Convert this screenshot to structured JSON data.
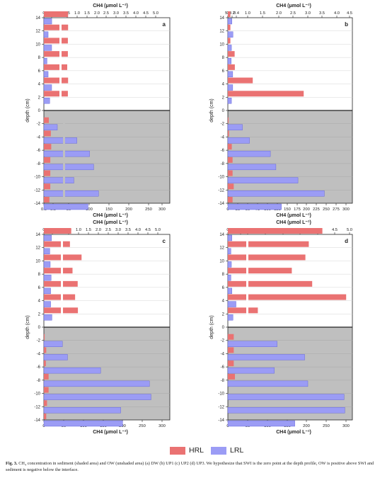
{
  "chart_data": [
    {
      "type": "bar",
      "panel_label": "a",
      "ylabel": "depth (cm)",
      "top_xlabel": "CH4 (μmol L⁻¹)",
      "bottom_xlabel": "CH4 (μmol L⁻¹)",
      "top_ticks": [
        "0",
        "0.04",
        "0.5",
        "1.0",
        "1.5",
        "2.0",
        "2.5",
        "3.0",
        "3.5",
        "4.0",
        "4.5",
        "5.0"
      ],
      "bottom_ticks": [
        "0.0",
        "0.5",
        "50",
        "100",
        "150",
        "200",
        "250",
        "300"
      ],
      "y_ticks": [
        "14",
        "12",
        "10",
        "8",
        "6",
        "4",
        "2",
        "0",
        "-2",
        "-4",
        "-6",
        "-8",
        "-10",
        "-12",
        "-14"
      ],
      "depths": [
        14,
        12,
        10,
        8,
        6,
        4,
        2,
        -2,
        -4,
        -6,
        -8,
        -10,
        -12,
        -14
      ],
      "series": [
        {
          "name": "HRL",
          "values": [
            0.54,
            0.54,
            0.53,
            0.53,
            0.5,
            0.54,
            0.53,
            0.27,
            0.38,
            0.4,
            0.35,
            0.35,
            0.35,
            0.3
          ]
        },
        {
          "name": "LRL",
          "values": [
            0.042,
            0.022,
            0.04,
            0.016,
            0.022,
            0.04,
            0.03,
            0.7,
            72,
            106,
            117,
            64,
            130,
            102
          ]
        }
      ]
    },
    {
      "type": "bar",
      "panel_label": "b",
      "ylabel": "depth (cm)",
      "top_xlabel": "CH4 (μmol L⁻¹)",
      "bottom_xlabel": "CH4 (μmol L⁻¹)",
      "top_ticks": [
        "0",
        "0.2",
        "0.4",
        "1.0",
        "1.5",
        "2.0",
        "2.5",
        "3.0",
        "3.5",
        "4.0",
        "4.5",
        "5.0"
      ],
      "bottom_ticks": [
        "0",
        "25",
        "50",
        "75",
        "100",
        "125",
        "150",
        "175",
        "200",
        "225",
        "250",
        "275",
        "300"
      ],
      "y_ticks": [
        "14",
        "12",
        "10",
        "8",
        "6",
        "4",
        "2",
        "0",
        "-2",
        "-4",
        "-6",
        "-8",
        "-10",
        "-12",
        "-14"
      ],
      "depths": [
        14,
        12,
        10,
        8,
        6,
        4,
        2,
        -2,
        -4,
        -6,
        -8,
        -10,
        -12,
        -14
      ],
      "series": [
        {
          "name": "HRL",
          "values": [
            0.12,
            0.12,
            0.12,
            0.32,
            0.33,
            1.2,
            3.2,
            2,
            3,
            10,
            12,
            12,
            15,
            12
          ]
        },
        {
          "name": "LRL",
          "values": [
            0.19,
            0.24,
            0.17,
            0.16,
            0.23,
            0.23,
            0.17,
            37,
            55,
            108,
            122,
            178,
            245,
            136
          ]
        }
      ]
    },
    {
      "type": "bar",
      "panel_label": "c",
      "ylabel": "depth (cm)",
      "top_xlabel": "CH4 (μmol L⁻¹)",
      "bottom_xlabel": "CH4 (μmol L⁻¹)",
      "top_ticks": [
        "0",
        "0.02",
        "0.5",
        "1.0",
        "1.5",
        "2.0",
        "2.5",
        "3.0",
        "3.5",
        "4.0",
        "4.5",
        "5.0"
      ],
      "bottom_ticks": [
        "0",
        "50",
        "100",
        "150",
        "200",
        "250",
        "300"
      ],
      "y_ticks": [
        "14",
        "12",
        "10",
        "8",
        "6",
        "4",
        "2",
        "0",
        "-2",
        "-4",
        "-6",
        "-8",
        "-10",
        "-12",
        "-14"
      ],
      "depths": [
        14,
        12,
        10,
        8,
        6,
        4,
        2,
        -2,
        -4,
        -6,
        -8,
        -10,
        -12,
        -14
      ],
      "series": [
        {
          "name": "HRL",
          "values": [
            0.62,
            0.56,
            1.1,
            0.68,
            0.92,
            0.8,
            0.93,
            2,
            6,
            5,
            12,
            12,
            8,
            6
          ]
        },
        {
          "name": "LRL",
          "values": [
            0.018,
            0.014,
            0.015,
            0.017,
            0.016,
            0.016,
            0.019,
            47,
            60,
            144,
            268,
            272,
            195,
            200
          ]
        }
      ]
    },
    {
      "type": "bar",
      "panel_label": "d",
      "ylabel": "depth (cm)",
      "top_xlabel": "CH4 (μmol L⁻¹)",
      "bottom_xlabel": "CH4 (μmol L⁻¹)",
      "top_ticks": [
        "0",
        "0.05",
        "2.0",
        "2.5",
        "3.0",
        "3.5",
        "4.0",
        "4.5",
        "5.0"
      ],
      "bottom_ticks": [
        "0",
        "50",
        "100",
        "150",
        "200",
        "250",
        "300"
      ],
      "y_ticks": [
        "14",
        "12",
        "10",
        "8",
        "6",
        "4",
        "2",
        "0",
        "-2",
        "-4",
        "-6",
        "-8",
        "-10",
        "-12",
        "-14"
      ],
      "depths": [
        14,
        12,
        10,
        8,
        6,
        4,
        2,
        -2,
        -4,
        -6,
        -8,
        -10,
        -12,
        -14
      ],
      "series": [
        {
          "name": "HRL",
          "values": [
            4.2,
            3.8,
            3.7,
            3.3,
            3.9,
            4.9,
            2.3,
            15,
            15,
            15,
            18,
            0,
            0,
            0
          ]
        },
        {
          "name": "LRL",
          "values": [
            0.016,
            0.012,
            0.014,
            0.012,
            0.016,
            0.032,
            0.02,
            125,
            195,
            118,
            203,
            295,
            297,
            170
          ]
        }
      ]
    }
  ],
  "legend": [
    {
      "name": "HRL",
      "color": "#ea7272"
    },
    {
      "name": "LRL",
      "color": "#9b9cf5"
    }
  ],
  "colors": {
    "sediment": "#bfbfbf",
    "hrl": "#ea7272",
    "lrl": "#9b9cf5"
  },
  "caption": {
    "label": "Fig. 3.",
    "text": " CH₄ concentration in sediment (shaded area) and OW (unshaded area) (a) DW (b) UP1 (c) UP2 (d) UP3. We hypothesize that SWI is the zero point at the depth profile, OW is positive above SWI and sediment is negative below the interface."
  }
}
